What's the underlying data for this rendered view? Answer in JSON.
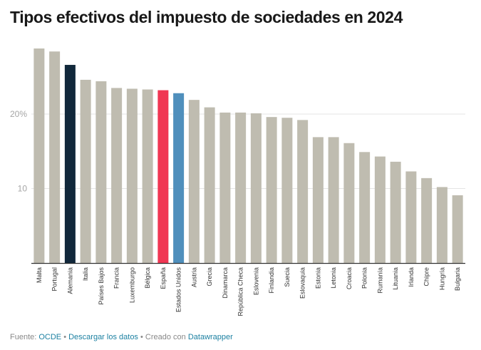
{
  "chart_data": {
    "type": "bar",
    "title": "Tipos efectivos del impuesto de sociedades en 2024",
    "xlabel": "",
    "ylabel": "",
    "ylim": [
      0,
      30
    ],
    "yticks": [
      {
        "value": 10,
        "label": "10"
      },
      {
        "value": 20,
        "label": "20%"
      }
    ],
    "grid": true,
    "categories": [
      "Malta",
      "Portugal",
      "Alemania",
      "Italia",
      "Países Bajos",
      "Francia",
      "Luxemburgo",
      "Bélgica",
      "España",
      "Estados Unidos",
      "Austria",
      "Grecia",
      "Dinamarca",
      "República Checa",
      "Eslovenia",
      "Finlandia",
      "Suecia",
      "Eslovaquia",
      "Estonia",
      "Letonia",
      "Croacia",
      "Polonia",
      "Rumanía",
      "Lituania",
      "Irlanda",
      "Chipre",
      "Hungría",
      "Bulgaria"
    ],
    "values": [
      28.8,
      28.4,
      26.6,
      24.6,
      24.4,
      23.5,
      23.4,
      23.3,
      23.2,
      22.8,
      21.9,
      20.9,
      20.2,
      20.2,
      20.1,
      19.6,
      19.5,
      19.2,
      16.9,
      16.9,
      16.1,
      14.9,
      14.3,
      13.6,
      12.3,
      11.4,
      10.2,
      9.1
    ],
    "colors": {
      "default": "#bfbcb0",
      "highlights": {
        "Alemania": "#11283b",
        "España": "#f03653",
        "Estados Unidos": "#4f8fbc"
      },
      "gridline": "#e4e4e4",
      "baseline": "#333333"
    }
  },
  "footer": {
    "source_prefix": "Fuente: ",
    "source_link": "OCDE",
    "separator_1": " • ",
    "download_link": "Descargar los datos",
    "separator_2": " • Creado con ",
    "tool_link": "Datawrapper"
  }
}
